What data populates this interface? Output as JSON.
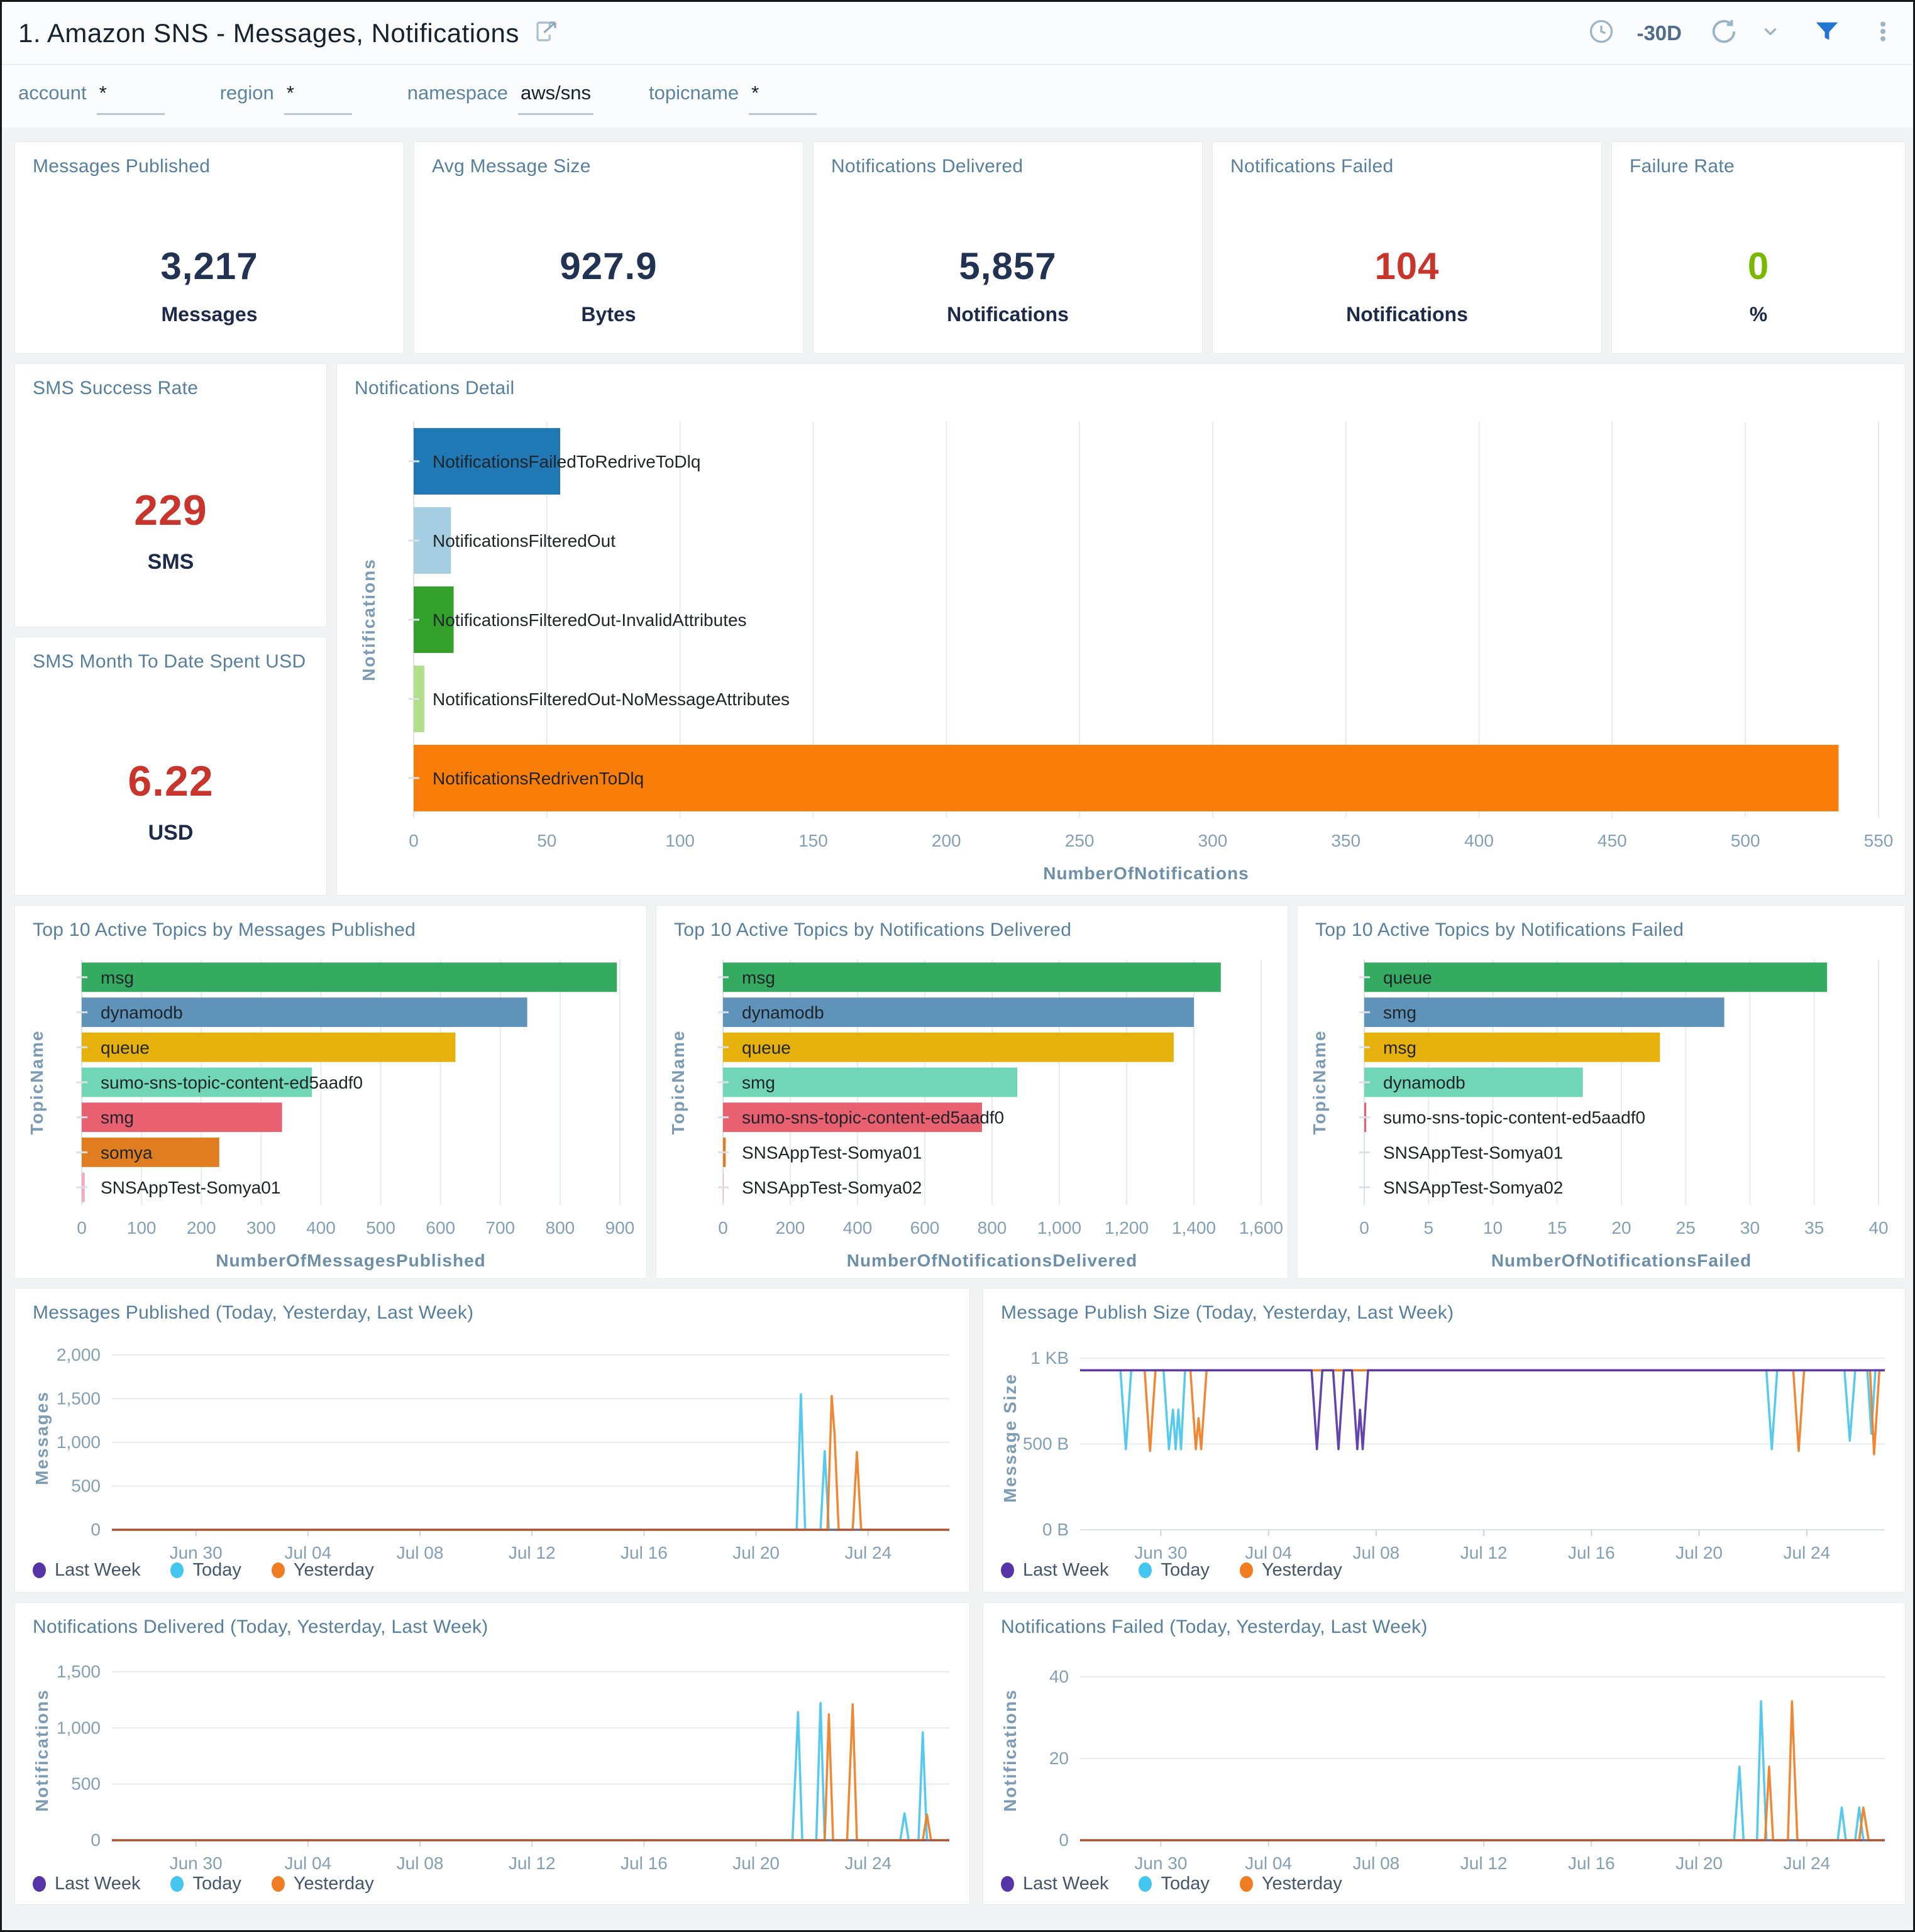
{
  "header": {
    "title": "1. Amazon SNS - Messages, Notifications",
    "time_range": "-30D",
    "icons": [
      "share-icon",
      "clock-icon",
      "refresh-icon",
      "chevron-down-icon",
      "filter-funnel-icon",
      "kebab-menu-icon"
    ],
    "accent_color": "#2276d2"
  },
  "filters": [
    {
      "label": "account",
      "value": "*"
    },
    {
      "label": "region",
      "value": "*"
    },
    {
      "label": "namespace",
      "value": "aws/sns"
    },
    {
      "label": "topicname",
      "value": "*"
    }
  ],
  "kpis": [
    {
      "title": "Messages Published",
      "value": "3,217",
      "unit": "Messages",
      "value_color": "#223252"
    },
    {
      "title": "Avg Message Size",
      "value": "927.9",
      "unit": "Bytes",
      "value_color": "#223252"
    },
    {
      "title": "Notifications Delivered",
      "value": "5,857",
      "unit": "Notifications",
      "value_color": "#223252"
    },
    {
      "title": "Notifications Failed",
      "value": "104",
      "unit": "Notifications",
      "value_color": "#c9342c"
    },
    {
      "title": "Failure Rate",
      "value": "0",
      "unit": "%",
      "value_color": "#7ab800"
    }
  ],
  "sms_cards": [
    {
      "title": "SMS Success Rate",
      "value": "229",
      "unit": "SMS",
      "value_color": "#c9342c"
    },
    {
      "title": "SMS Month To Date Spent USD",
      "value": "6.22",
      "unit": "USD",
      "value_color": "#c9342c"
    }
  ],
  "chart_data": [
    {
      "id": "notifications_detail",
      "type": "bar",
      "title": "Notifications Detail",
      "categories": [
        "NotificationsFailedToRedriveToDlq",
        "NotificationsFilteredOut",
        "NotificationsFilteredOut-InvalidAttributes",
        "NotificationsFilteredOut-NoMessageAttributes",
        "NotificationsRedrivenToDlq"
      ],
      "values": [
        55,
        14,
        15,
        4,
        535
      ],
      "colors": [
        "#2079b4",
        "#a6cee3",
        "#33a02c",
        "#b2df8a",
        "#f97d09"
      ],
      "xlabel": "NumberOfNotifications",
      "ylabel": "Notifications",
      "xlim": [
        0,
        550
      ],
      "xticks": [
        0,
        50,
        100,
        150,
        200,
        250,
        300,
        350,
        400,
        450,
        500,
        550
      ],
      "xtick_labels": [
        "0",
        "50",
        "100",
        "150",
        "200",
        "250",
        "300",
        "350",
        "400",
        "450",
        "500",
        "550"
      ]
    },
    {
      "id": "top_messages_published",
      "type": "bar",
      "title": "Top 10 Active Topics by Messages Published",
      "categories": [
        "msg",
        "dynamodb",
        "queue",
        "sumo-sns-topic-content-ed5aadf0",
        "smg",
        "somya",
        "SNSAppTest-Somya01"
      ],
      "values": [
        895,
        745,
        625,
        385,
        335,
        230,
        5
      ],
      "colors": [
        "#35ab62",
        "#5f93ba",
        "#e7b10d",
        "#70d6b6",
        "#e96070",
        "#df7d20",
        "#f2a9c4"
      ],
      "xlabel": "NumberOfMessagesPublished",
      "ylabel": "TopicName",
      "xlim": [
        0,
        900
      ],
      "xticks": [
        0,
        100,
        200,
        300,
        400,
        500,
        600,
        700,
        800,
        900
      ],
      "xtick_labels": [
        "0",
        "100",
        "200",
        "300",
        "400",
        "500",
        "600",
        "700",
        "800",
        "900"
      ]
    },
    {
      "id": "top_notifications_delivered",
      "type": "bar",
      "title": "Top 10 Active Topics by Notifications Delivered",
      "categories": [
        "msg",
        "dynamodb",
        "queue",
        "smg",
        "sumo-sns-topic-content-ed5aadf0",
        "SNSAppTest-Somya01",
        "SNSAppTest-Somya02"
      ],
      "values": [
        1480,
        1400,
        1340,
        875,
        770,
        8,
        2
      ],
      "colors": [
        "#35ab62",
        "#5f93ba",
        "#e7b10d",
        "#70d6b6",
        "#e96070",
        "#df7d20",
        "#f2a9c4"
      ],
      "xlabel": "NumberOfNotificationsDelivered",
      "ylabel": "TopicName",
      "xlim": [
        0,
        1600
      ],
      "xticks": [
        0,
        200,
        400,
        600,
        800,
        1000,
        1200,
        1400,
        1600
      ],
      "xtick_labels": [
        "0",
        "200",
        "400",
        "600",
        "800",
        "1,000",
        "1,200",
        "1,400",
        "1,600"
      ]
    },
    {
      "id": "top_notifications_failed",
      "type": "bar",
      "title": "Top 10 Active Topics by Notifications Failed",
      "categories": [
        "queue",
        "smg",
        "msg",
        "dynamodb",
        "sumo-sns-topic-content-ed5aadf0",
        "SNSAppTest-Somya01",
        "SNSAppTest-Somya02"
      ],
      "values": [
        36,
        28,
        23,
        17,
        0.15,
        0,
        0
      ],
      "colors": [
        "#35ab62",
        "#5f93ba",
        "#e7b10d",
        "#70d6b6",
        "#e96070",
        "#df7d20",
        "#f2a9c4"
      ],
      "xlabel": "NumberOfNotificationsFailed",
      "ylabel": "TopicName",
      "xlim": [
        0,
        40
      ],
      "xticks": [
        0,
        5,
        10,
        15,
        20,
        25,
        30,
        35,
        40
      ],
      "xtick_labels": [
        "0",
        "5",
        "10",
        "15",
        "20",
        "25",
        "30",
        "35",
        "40"
      ]
    },
    {
      "id": "messages_published_trend",
      "type": "line",
      "title": "Messages Published (Today, Yesterday, Last Week)",
      "ylabel": "Messages",
      "ylim": [
        0,
        2100
      ],
      "yticks": [
        0,
        500,
        1000,
        1500,
        2000
      ],
      "ytick_labels": [
        "0",
        "500",
        "1,000",
        "1,500",
        "2,000"
      ],
      "x_domain": [
        0,
        29.9
      ],
      "xticks": [
        3,
        7,
        11,
        15,
        19,
        23,
        27
      ],
      "xtick_labels": [
        "Jun 30",
        "Jul 04",
        "Jul 08",
        "Jul 12",
        "Jul 16",
        "Jul 20",
        "Jul 24"
      ],
      "baseline_color": "#a2493b",
      "series": [
        {
          "name": "Last Week",
          "color": "#5434a7",
          "points": [
            [
              0,
              0
            ],
            [
              29.9,
              0
            ]
          ]
        },
        {
          "name": "Today",
          "color": "#45c6f0",
          "points": [
            [
              0,
              0
            ],
            [
              24.45,
              0
            ],
            [
              24.6,
              1550
            ],
            [
              24.75,
              0
            ],
            [
              25.3,
              0
            ],
            [
              25.45,
              900
            ],
            [
              25.6,
              0
            ],
            [
              29.9,
              0
            ]
          ]
        },
        {
          "name": "Yesterday",
          "color": "#f07d22",
          "points": [
            [
              0,
              0
            ],
            [
              25.55,
              0
            ],
            [
              25.7,
              1530
            ],
            [
              25.8,
              1100
            ],
            [
              25.95,
              0
            ],
            [
              26.45,
              0
            ],
            [
              26.6,
              890
            ],
            [
              26.75,
              0
            ],
            [
              29.9,
              0
            ]
          ]
        }
      ]
    },
    {
      "id": "message_publish_size_trend",
      "type": "line",
      "title": "Message Publish Size (Today, Yesterday, Last Week)",
      "ylabel": "Message Size",
      "ylim": [
        0,
        1070
      ],
      "yticks": [
        0,
        500,
        1000
      ],
      "ytick_labels": [
        "0 B",
        "500 B",
        "1 KB"
      ],
      "x_domain": [
        0,
        29.9
      ],
      "xticks": [
        3,
        7,
        11,
        15,
        19,
        23,
        27
      ],
      "xtick_labels": [
        "Jun 30",
        "Jul 04",
        "Jul 08",
        "Jul 12",
        "Jul 16",
        "Jul 20",
        "Jul 24"
      ],
      "draw_order": [
        1,
        2,
        0
      ],
      "series": [
        {
          "name": "Last Week",
          "color": "#5434a7",
          "points": [
            [
              0,
              930
            ],
            [
              8.6,
              930
            ],
            [
              8.8,
              470
            ],
            [
              9.0,
              930
            ],
            [
              9.4,
              930
            ],
            [
              9.6,
              470
            ],
            [
              9.8,
              930
            ],
            [
              10.1,
              930
            ],
            [
              10.3,
              470
            ],
            [
              10.4,
              700
            ],
            [
              10.5,
              470
            ],
            [
              10.7,
              930
            ],
            [
              29.9,
              930
            ]
          ]
        },
        {
          "name": "Today",
          "color": "#45c6f0",
          "points": [
            [
              0,
              930
            ],
            [
              1.5,
              930
            ],
            [
              1.7,
              470
            ],
            [
              1.9,
              930
            ],
            [
              3.1,
              930
            ],
            [
              3.3,
              470
            ],
            [
              3.45,
              700
            ],
            [
              3.55,
              470
            ],
            [
              3.65,
              700
            ],
            [
              3.75,
              470
            ],
            [
              3.9,
              930
            ],
            [
              25.5,
              930
            ],
            [
              25.7,
              470
            ],
            [
              25.9,
              930
            ],
            [
              28.4,
              930
            ],
            [
              28.6,
              520
            ],
            [
              28.8,
              930
            ],
            [
              29.25,
              930
            ],
            [
              29.4,
              560
            ],
            [
              29.55,
              930
            ],
            [
              29.9,
              930
            ]
          ]
        },
        {
          "name": "Yesterday",
          "color": "#f07d22",
          "points": [
            [
              0,
              930
            ],
            [
              2.4,
              930
            ],
            [
              2.6,
              460
            ],
            [
              2.8,
              930
            ],
            [
              4.1,
              930
            ],
            [
              4.3,
              470
            ],
            [
              4.4,
              650
            ],
            [
              4.5,
              470
            ],
            [
              4.7,
              930
            ],
            [
              26.5,
              930
            ],
            [
              26.7,
              460
            ],
            [
              26.9,
              930
            ],
            [
              29.35,
              930
            ],
            [
              29.5,
              440
            ],
            [
              29.7,
              930
            ],
            [
              29.9,
              930
            ]
          ]
        }
      ]
    },
    {
      "id": "notifications_delivered_trend",
      "type": "line",
      "title": "Notifications Delivered (Today, Yesterday, Last Week)",
      "ylabel": "Notifications",
      "ylim": [
        0,
        1600
      ],
      "yticks": [
        0,
        500,
        1000,
        1500
      ],
      "ytick_labels": [
        "0",
        "500",
        "1,000",
        "1,500"
      ],
      "x_domain": [
        0,
        29.9
      ],
      "xticks": [
        3,
        7,
        11,
        15,
        19,
        23,
        27
      ],
      "xtick_labels": [
        "Jun 30",
        "Jul 04",
        "Jul 08",
        "Jul 12",
        "Jul 16",
        "Jul 20",
        "Jul 24"
      ],
      "baseline_color": "#a2493b",
      "series": [
        {
          "name": "Last Week",
          "color": "#5434a7",
          "points": [
            [
              0,
              0
            ],
            [
              29.9,
              0
            ]
          ]
        },
        {
          "name": "Today",
          "color": "#45c6f0",
          "points": [
            [
              0,
              0
            ],
            [
              24.3,
              0
            ],
            [
              24.5,
              1140
            ],
            [
              24.65,
              0
            ],
            [
              25.15,
              0
            ],
            [
              25.3,
              1220
            ],
            [
              25.45,
              0
            ],
            [
              28.15,
              0
            ],
            [
              28.3,
              240
            ],
            [
              28.45,
              0
            ],
            [
              28.8,
              0
            ],
            [
              28.95,
              960
            ],
            [
              29.1,
              0
            ],
            [
              29.9,
              0
            ]
          ]
        },
        {
          "name": "Yesterday",
          "color": "#f07d22",
          "points": [
            [
              0,
              0
            ],
            [
              25.45,
              0
            ],
            [
              25.6,
              1120
            ],
            [
              25.75,
              0
            ],
            [
              26.25,
              0
            ],
            [
              26.45,
              1210
            ],
            [
              26.6,
              0
            ],
            [
              28.95,
              0
            ],
            [
              29.1,
              230
            ],
            [
              29.25,
              0
            ],
            [
              29.9,
              0
            ]
          ]
        }
      ]
    },
    {
      "id": "notifications_failed_trend",
      "type": "line",
      "title": "Notifications Failed (Today, Yesterday, Last Week)",
      "ylabel": "Notifications",
      "ylim": [
        0,
        44
      ],
      "yticks": [
        0,
        20,
        40
      ],
      "ytick_labels": [
        "0",
        "20",
        "40"
      ],
      "x_domain": [
        0,
        29.9
      ],
      "xticks": [
        3,
        7,
        11,
        15,
        19,
        23,
        27
      ],
      "xtick_labels": [
        "Jun 30",
        "Jul 04",
        "Jul 08",
        "Jul 12",
        "Jul 16",
        "Jul 20",
        "Jul 24"
      ],
      "baseline_color": "#a2493b",
      "series": [
        {
          "name": "Last Week",
          "color": "#5434a7",
          "points": [
            [
              0,
              0
            ],
            [
              29.9,
              0
            ]
          ]
        },
        {
          "name": "Today",
          "color": "#45c6f0",
          "points": [
            [
              0,
              0
            ],
            [
              24.3,
              0
            ],
            [
              24.5,
              18
            ],
            [
              24.65,
              0
            ],
            [
              25.15,
              0
            ],
            [
              25.3,
              34
            ],
            [
              25.5,
              0
            ],
            [
              28.15,
              0
            ],
            [
              28.3,
              8
            ],
            [
              28.45,
              0
            ],
            [
              28.8,
              0
            ],
            [
              28.95,
              8
            ],
            [
              29.1,
              0
            ],
            [
              29.9,
              0
            ]
          ]
        },
        {
          "name": "Yesterday",
          "color": "#f07d22",
          "points": [
            [
              0,
              0
            ],
            [
              25.45,
              0
            ],
            [
              25.6,
              18
            ],
            [
              25.75,
              0
            ],
            [
              26.3,
              0
            ],
            [
              26.45,
              34
            ],
            [
              26.65,
              0
            ],
            [
              28.95,
              0
            ],
            [
              29.1,
              8
            ],
            [
              29.3,
              0
            ],
            [
              29.9,
              0
            ]
          ]
        }
      ]
    }
  ]
}
